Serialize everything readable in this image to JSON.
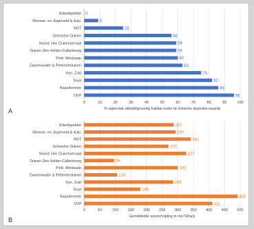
{
  "chart_data": [
    {
      "type": "bar",
      "orientation": "horizontal",
      "panel_label": "A",
      "categories": [
        "Eilandspolder",
        "Wormer- en Jisperveld & Kalv.",
        "NOT",
        "Schoorlse Duinen",
        "Noord. Hol. Duinreservaat",
        "Duinen Den Helder-Callantsoog",
        "Pold. Westzaan",
        "Zwanenwater & Pettemerduinen",
        "Ken. Zuid",
        "Texel",
        "Naardermeer",
        "OVP"
      ],
      "values": [
        0,
        9,
        25,
        56,
        59,
        59,
        60,
        63,
        75,
        82,
        86,
        96
      ],
      "xlim": [
        0,
        100
      ],
      "xticks": [
        0,
        10,
        20,
        30,
        40,
        50,
        60,
        70,
        80,
        90,
        100
      ],
      "xlabel": "% oppervlak stikstofgevoelig habitat onder de kritische depositie waarde",
      "bar_color": "#4472c4",
      "label_color": "#4472c4",
      "grid": "vertical"
    },
    {
      "type": "bar",
      "orientation": "horizontal",
      "panel_label": "B",
      "categories": [
        "Eilandspolder",
        "Wormer- en Jisperveld & Kalv.",
        "NOT",
        "Schoorlse Duinen",
        "Noord. Hol. Duinreservaat",
        "Duinen Den Helder-Callantsoog",
        "Pold. Westzaan",
        "Zwanenwater & Pettemerduinen",
        "Ken. Zuid",
        "Texel",
        "Naardermeer",
        "OVP"
      ],
      "values": [
        287,
        293,
        342,
        270,
        327,
        96,
        300,
        106,
        285,
        180,
        492,
        411
      ],
      "xlim": [
        0,
        500
      ],
      "xticks": [
        0,
        50,
        100,
        150,
        200,
        250,
        300,
        350,
        400,
        450,
        500
      ],
      "xlabel": "Gemiddelde overschrijding in mol N/ha/jr",
      "bar_color": "#ed7d31",
      "label_color": "#ed7d31",
      "grid": "vertical"
    }
  ]
}
